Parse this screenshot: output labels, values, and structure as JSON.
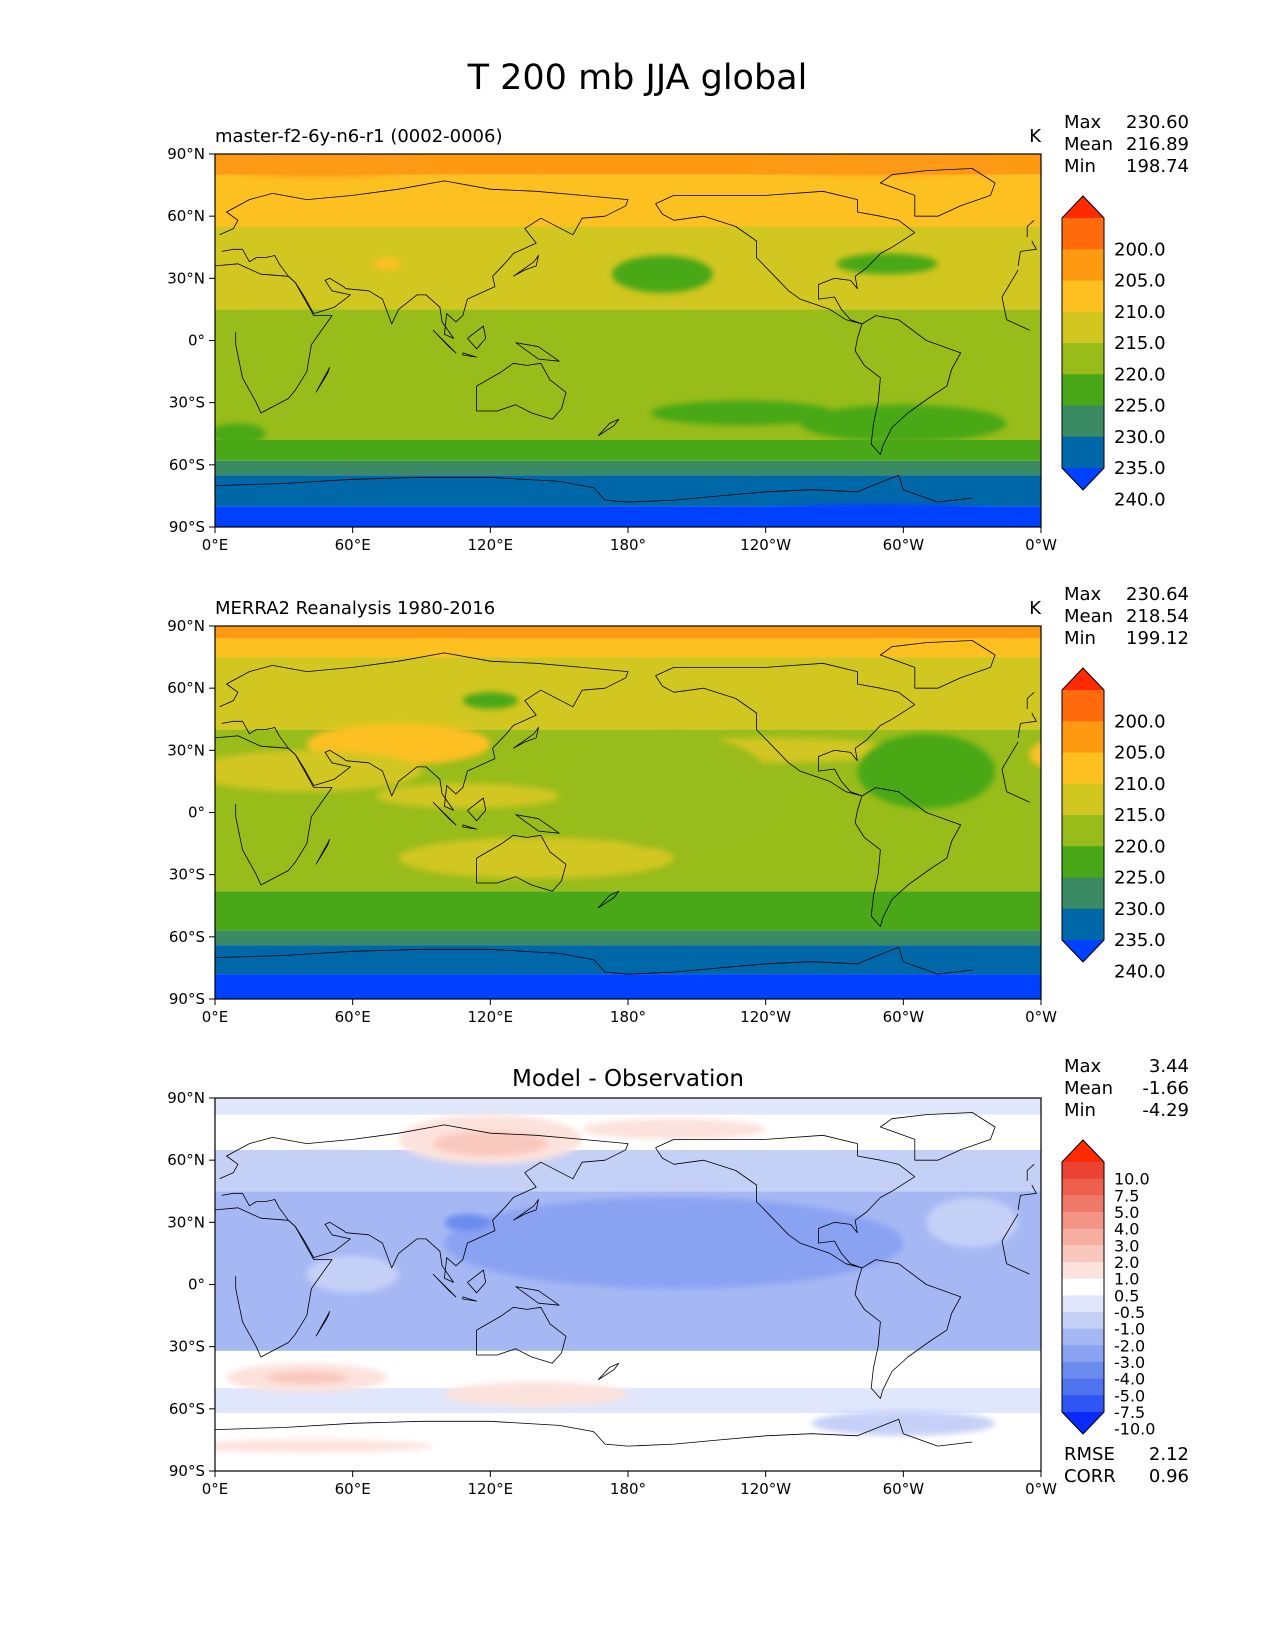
{
  "title": "T 200 mb JJA global",
  "chart_data": [
    {
      "type": "heatmap",
      "title": "master-f2-6y-n6-r1 (0002-0006)",
      "units": "K",
      "stats": [
        {
          "label": "Max",
          "value": "230.60"
        },
        {
          "label": "Mean",
          "value": "216.89"
        },
        {
          "label": "Min",
          "value": "198.74"
        }
      ],
      "x_ticks": [
        "0°E",
        "60°E",
        "120°E",
        "180°",
        "120°W",
        "60°W",
        "0°W"
      ],
      "y_ticks": [
        "90°N",
        "60°N",
        "30°N",
        "0°",
        "30°S",
        "60°S",
        "90°S"
      ],
      "xlim": [
        0,
        360
      ],
      "ylim": [
        -90,
        90
      ],
      "colorbar": {
        "colors": [
          "#0040ff",
          "#0068a8",
          "#3a8a64",
          "#4aa818",
          "#98bc1a",
          "#d2c620",
          "#fdc021",
          "#fd9a12",
          "#ff6a0c",
          "#ff2a00"
        ],
        "labels": [
          "200.0",
          "205.0",
          "210.0",
          "215.0",
          "220.0",
          "225.0",
          "230.0",
          "235.0",
          "240.0"
        ]
      },
      "bands": [
        {
          "lat": [
            -90,
            -80
          ],
          "color": "#0040ff"
        },
        {
          "lat": [
            -80,
            -65
          ],
          "color": "#0068a8"
        },
        {
          "lat": [
            -65,
            -58
          ],
          "color": "#3a8a64"
        },
        {
          "lat": [
            -58,
            -48
          ],
          "color": "#4aa818"
        },
        {
          "lat": [
            -48,
            15
          ],
          "color": "#98bc1a"
        },
        {
          "lat": [
            15,
            55
          ],
          "color": "#d2c620"
        },
        {
          "lat": [
            55,
            80
          ],
          "color": "#fdc021"
        },
        {
          "lat": [
            80,
            90
          ],
          "color": "#fd9a12"
        }
      ],
      "blobs": [
        {
          "lon": 195,
          "lat": 32,
          "rx": 22,
          "ry": 9,
          "color": "#4aa818"
        },
        {
          "lon": 230,
          "lat": -35,
          "rx": 40,
          "ry": 6,
          "color": "#4aa818"
        },
        {
          "lon": 293,
          "lat": 37,
          "rx": 22,
          "ry": 5,
          "color": "#4aa818"
        },
        {
          "lon": 300,
          "lat": -40,
          "rx": 45,
          "ry": 9,
          "color": "#4aa818"
        },
        {
          "lon": 10,
          "lat": -45,
          "rx": 12,
          "ry": 5,
          "color": "#4aa818"
        },
        {
          "lon": 30,
          "lat": 30,
          "rx": 30,
          "ry": 12,
          "color": "#d2c620"
        },
        {
          "lon": 75,
          "lat": 37,
          "rx": 6,
          "ry": 3,
          "color": "#fdc021"
        },
        {
          "lon": 45,
          "lat": 85,
          "rx": 50,
          "ry": 6,
          "color": "#fd9a12"
        },
        {
          "lon": 290,
          "lat": 84,
          "rx": 60,
          "ry": 4,
          "color": "#fd9a12"
        },
        {
          "lon": 290,
          "lat": -85,
          "rx": 60,
          "ry": 6,
          "color": "#0040ff"
        }
      ]
    },
    {
      "type": "heatmap",
      "title": "MERRA2 Reanalysis 1980-2016",
      "units": "K",
      "stats": [
        {
          "label": "Max",
          "value": "230.64"
        },
        {
          "label": "Mean",
          "value": "218.54"
        },
        {
          "label": "Min",
          "value": "199.12"
        }
      ],
      "x_ticks": [
        "0°E",
        "60°E",
        "120°E",
        "180°",
        "120°W",
        "60°W",
        "0°W"
      ],
      "y_ticks": [
        "90°N",
        "60°N",
        "30°N",
        "0°",
        "30°S",
        "60°S",
        "90°S"
      ],
      "xlim": [
        0,
        360
      ],
      "ylim": [
        -90,
        90
      ],
      "colorbar": {
        "colors": [
          "#0040ff",
          "#0068a8",
          "#3a8a64",
          "#4aa818",
          "#98bc1a",
          "#d2c620",
          "#fdc021",
          "#fd9a12",
          "#ff6a0c",
          "#ff2a00"
        ],
        "labels": [
          "200.0",
          "205.0",
          "210.0",
          "215.0",
          "220.0",
          "225.0",
          "230.0",
          "235.0",
          "240.0"
        ]
      },
      "bands": [
        {
          "lat": [
            -90,
            -78
          ],
          "color": "#0040ff"
        },
        {
          "lat": [
            -78,
            -64
          ],
          "color": "#0068a8"
        },
        {
          "lat": [
            -64,
            -57
          ],
          "color": "#3a8a64"
        },
        {
          "lat": [
            -57,
            -38
          ],
          "color": "#4aa818"
        },
        {
          "lat": [
            -38,
            40
          ],
          "color": "#98bc1a"
        },
        {
          "lat": [
            40,
            75
          ],
          "color": "#d2c620"
        },
        {
          "lat": [
            75,
            84
          ],
          "color": "#fdc021"
        },
        {
          "lat": [
            84,
            90
          ],
          "color": "#fd9a12"
        }
      ],
      "blobs": [
        {
          "lon": 80,
          "lat": 33,
          "rx": 40,
          "ry": 10,
          "color": "#fdc021"
        },
        {
          "lon": 40,
          "lat": 20,
          "rx": 50,
          "ry": 10,
          "color": "#d2c620"
        },
        {
          "lon": 140,
          "lat": -22,
          "rx": 60,
          "ry": 10,
          "color": "#d2c620"
        },
        {
          "lon": 110,
          "lat": 8,
          "rx": 40,
          "ry": 6,
          "color": "#d2c620"
        },
        {
          "lon": 240,
          "lat": 30,
          "rx": 60,
          "ry": 6,
          "color": "#d2c620"
        },
        {
          "lon": 370,
          "lat": 28,
          "rx": 15,
          "ry": 8,
          "color": "#fdc021"
        },
        {
          "lon": 310,
          "lat": 20,
          "rx": 30,
          "ry": 18,
          "color": "#4aa818"
        },
        {
          "lon": 120,
          "lat": 54,
          "rx": 12,
          "ry": 4,
          "color": "#4aa818"
        },
        {
          "lon": 200,
          "lat": 10,
          "rx": 45,
          "ry": 28,
          "color": "#98bc1a"
        }
      ]
    },
    {
      "type": "heatmap",
      "title": "Model - Observation",
      "units": "",
      "stats": [
        {
          "label": "Max",
          "value": "3.44"
        },
        {
          "label": "Mean",
          "value": "-1.66"
        },
        {
          "label": "Min",
          "value": "-4.29"
        }
      ],
      "extra_stats": [
        {
          "label": "RMSE",
          "value": "2.12"
        },
        {
          "label": "CORR",
          "value": "0.96"
        }
      ],
      "x_ticks": [
        "0°E",
        "60°E",
        "120°E",
        "180°",
        "120°W",
        "60°W",
        "0°W"
      ],
      "y_ticks": [
        "90°N",
        "60°N",
        "30°N",
        "0°",
        "30°S",
        "60°S",
        "90°S"
      ],
      "xlim": [
        0,
        360
      ],
      "ylim": [
        -90,
        90
      ],
      "colorbar": {
        "colors": [
          "#0a2aff",
          "#2f55f5",
          "#4f72ee",
          "#6c8bee",
          "#8aa2f2",
          "#a6b8f3",
          "#c5d0f7",
          "#e0e6fb",
          "#ffffff",
          "#fce2dc",
          "#f9c8bd",
          "#f6aea0",
          "#f39484",
          "#f07a6a",
          "#ee5f4e",
          "#ec4234",
          "#ff2a00"
        ],
        "labels": [
          "10.0",
          "7.5",
          "5.0",
          "4.0",
          "3.0",
          "2.0",
          "1.0",
          "0.5",
          "-0.5",
          "-1.0",
          "-2.0",
          "-3.0",
          "-4.0",
          "-5.0",
          "-7.5",
          "-10.0"
        ]
      },
      "bands": [
        {
          "lat": [
            -90,
            -62
          ],
          "color": "#ffffff"
        },
        {
          "lat": [
            -62,
            -50
          ],
          "color": "#e0e6fb"
        },
        {
          "lat": [
            -50,
            -32
          ],
          "color": "#ffffff"
        },
        {
          "lat": [
            -32,
            45
          ],
          "color": "#a6b8f3"
        },
        {
          "lat": [
            45,
            65
          ],
          "color": "#c5d0f7"
        },
        {
          "lat": [
            65,
            82
          ],
          "color": "#ffffff"
        },
        {
          "lat": [
            82,
            90
          ],
          "color": "#e0e6fb"
        }
      ],
      "blobs": [
        {
          "lon": 200,
          "lat": 20,
          "rx": 100,
          "ry": 22,
          "color": "#8aa2f2"
        },
        {
          "lon": 110,
          "lat": 30,
          "rx": 10,
          "ry": 4,
          "color": "#6c8bee"
        },
        {
          "lon": 60,
          "lat": 5,
          "rx": 20,
          "ry": 9,
          "color": "#c5d0f7"
        },
        {
          "lon": 120,
          "lat": 70,
          "rx": 40,
          "ry": 12,
          "color": "#fce2dc"
        },
        {
          "lon": 120,
          "lat": 68,
          "rx": 25,
          "ry": 6,
          "color": "#f9c8bd"
        },
        {
          "lon": 40,
          "lat": -45,
          "rx": 35,
          "ry": 7,
          "color": "#fce2dc"
        },
        {
          "lon": 40,
          "lat": -45,
          "rx": 18,
          "ry": 3,
          "color": "#f9c8bd"
        },
        {
          "lon": 140,
          "lat": -53,
          "rx": 40,
          "ry": 6,
          "color": "#fce2dc"
        },
        {
          "lon": 200,
          "lat": 75,
          "rx": 40,
          "ry": 5,
          "color": "#fce2dc"
        },
        {
          "lon": 50,
          "lat": 58,
          "rx": 18,
          "ry": 6,
          "color": "#c5d0f7"
        },
        {
          "lon": 300,
          "lat": -67,
          "rx": 40,
          "ry": 6,
          "color": "#c5d0f7"
        },
        {
          "lon": 40,
          "lat": -78,
          "rx": 55,
          "ry": 3,
          "color": "#fce2dc"
        },
        {
          "lon": 330,
          "lat": 30,
          "rx": 20,
          "ry": 12,
          "color": "#c5d0f7"
        }
      ]
    }
  ]
}
